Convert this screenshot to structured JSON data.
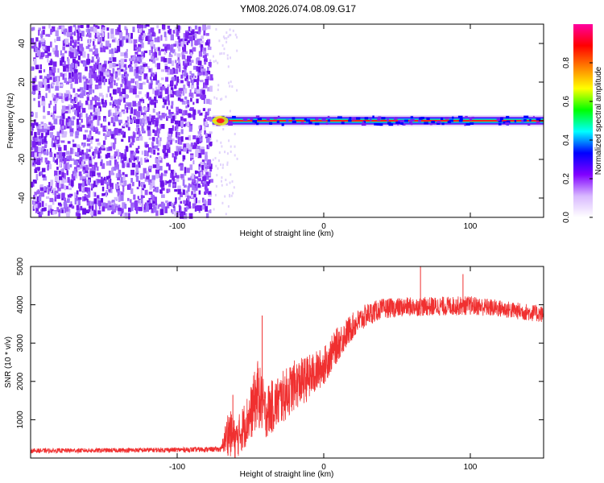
{
  "title": "YM08.2026.074.08.09.G17",
  "chart_data": [
    {
      "type": "heatmap",
      "name": "spectrogram",
      "xlabel": "Height of straight line (km)",
      "ylabel": "Frequency (Hz)",
      "xlim": [
        -200,
        150
      ],
      "ylim": [
        -50,
        50
      ],
      "xticks": [
        -100,
        0,
        100
      ],
      "xtick_labels": [
        "-100",
        "0",
        "100"
      ],
      "yticks": [
        -40,
        -20,
        0,
        20,
        40
      ],
      "ytick_labels": [
        "-40",
        "-20",
        "0",
        "20",
        "40"
      ],
      "noise_region_x": [
        -200,
        -76
      ],
      "signal_frequency_hz": 0,
      "signal_start_x": -76,
      "colorbar": {
        "label": "Normalized spectral amplitude",
        "range": [
          0.0,
          1.0
        ],
        "ticks": [
          0.0,
          0.2,
          0.4,
          0.6,
          0.8
        ],
        "tick_labels": [
          "0.0",
          "0.2",
          "0.4",
          "0.6",
          "0.8"
        ],
        "colors": [
          "#ffffff",
          "#d8b8ff",
          "#8000ff",
          "#0000ff",
          "#00ffff",
          "#00ff00",
          "#ffff00",
          "#ff8000",
          "#ff0000",
          "#ff00a0"
        ]
      }
    },
    {
      "type": "line",
      "name": "snr",
      "xlabel": "Height of straight line (km)",
      "ylabel": "SNR (10 * v/v)",
      "xlim": [
        -200,
        150
      ],
      "ylim": [
        0,
        5000
      ],
      "xticks": [
        -100,
        0,
        100
      ],
      "xtick_labels": [
        "-100",
        "0",
        "100"
      ],
      "yticks": [
        1000,
        2000,
        3000,
        4000,
        5000
      ],
      "ytick_labels": [
        "1000",
        "2000",
        "3000",
        "4000",
        "5000"
      ],
      "color": "#f03030",
      "envelope": {
        "x": [
          -200,
          -150,
          -100,
          -70,
          -65,
          -60,
          -50,
          -45,
          -40,
          -30,
          -20,
          -10,
          0,
          10,
          20,
          30,
          40,
          60,
          80,
          100,
          120,
          150
        ],
        "mean": [
          190,
          200,
          215,
          230,
          700,
          450,
          1150,
          1700,
          1200,
          1500,
          1900,
          2100,
          2400,
          3000,
          3450,
          3750,
          3900,
          3950,
          3960,
          3980,
          3900,
          3750
        ],
        "spread": [
          60,
          60,
          65,
          70,
          650,
          500,
          700,
          900,
          700,
          700,
          650,
          600,
          500,
          450,
          350,
          300,
          260,
          250,
          250,
          250,
          230,
          220
        ]
      },
      "spikes": [
        {
          "x": -62,
          "y": 1650
        },
        {
          "x": -42,
          "y": 3720
        },
        {
          "x": 66,
          "y": 5000
        },
        {
          "x": 95,
          "y": 4800
        }
      ]
    }
  ]
}
